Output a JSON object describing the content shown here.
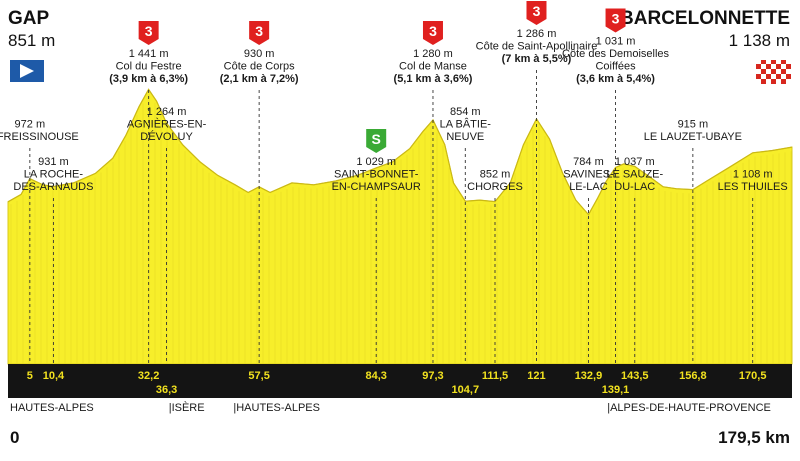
{
  "start": {
    "name": "GAP",
    "altitude": "851 m",
    "km": "0"
  },
  "finish": {
    "name": "BARCELONNETTE",
    "altitude": "1 138 m",
    "km": "179,5 km"
  },
  "regions": [
    {
      "label": "HAUTES-ALPES",
      "km": 0
    },
    {
      "label": "|ISÈRE",
      "km": 36.8
    },
    {
      "label": "|HAUTES-ALPES",
      "km": 51.6
    },
    {
      "label": "|ALPES-DE-HAUTE-PROVENCE",
      "km": 137.2
    }
  ],
  "colors": {
    "profile": "#f7ee2a",
    "band": "#141414",
    "km_text": "#f2e21f",
    "climb_badge": "#e0201f",
    "sprint_badge": "#3aaa35",
    "start_flag": "#1e5aa8"
  },
  "chart_data": {
    "type": "area",
    "xlabel": "",
    "ylabel": "",
    "xlim": [
      0,
      179.5
    ],
    "ylim": [
      0,
      1700
    ],
    "profile": [
      {
        "km": 0,
        "alt": 851
      },
      {
        "km": 3,
        "alt": 890
      },
      {
        "km": 5,
        "alt": 972
      },
      {
        "km": 8,
        "alt": 940
      },
      {
        "km": 10.4,
        "alt": 931
      },
      {
        "km": 15,
        "alt": 950
      },
      {
        "km": 20,
        "alt": 1000
      },
      {
        "km": 24,
        "alt": 1080
      },
      {
        "km": 27,
        "alt": 1200
      },
      {
        "km": 30,
        "alt": 1350
      },
      {
        "km": 32.2,
        "alt": 1441
      },
      {
        "km": 34,
        "alt": 1380
      },
      {
        "km": 36.3,
        "alt": 1264
      },
      {
        "km": 40,
        "alt": 1150
      },
      {
        "km": 44,
        "alt": 1060
      },
      {
        "km": 48,
        "alt": 990
      },
      {
        "km": 52,
        "alt": 940
      },
      {
        "km": 55,
        "alt": 900
      },
      {
        "km": 57.5,
        "alt": 930
      },
      {
        "km": 60,
        "alt": 900
      },
      {
        "km": 65,
        "alt": 950
      },
      {
        "km": 70,
        "alt": 940
      },
      {
        "km": 75,
        "alt": 960
      },
      {
        "km": 80,
        "alt": 990
      },
      {
        "km": 84.3,
        "alt": 1029
      },
      {
        "km": 88,
        "alt": 1060
      },
      {
        "km": 92,
        "alt": 1130
      },
      {
        "km": 95,
        "alt": 1220
      },
      {
        "km": 97.3,
        "alt": 1280
      },
      {
        "km": 100,
        "alt": 1150
      },
      {
        "km": 102,
        "alt": 950
      },
      {
        "km": 104.7,
        "alt": 854
      },
      {
        "km": 108,
        "alt": 860
      },
      {
        "km": 111.5,
        "alt": 852
      },
      {
        "km": 115,
        "alt": 950
      },
      {
        "km": 118,
        "alt": 1150
      },
      {
        "km": 121,
        "alt": 1286
      },
      {
        "km": 124,
        "alt": 1180
      },
      {
        "km": 127,
        "alt": 1000
      },
      {
        "km": 130,
        "alt": 860
      },
      {
        "km": 132.9,
        "alt": 784
      },
      {
        "km": 135,
        "alt": 870
      },
      {
        "km": 137,
        "alt": 960
      },
      {
        "km": 139.1,
        "alt": 1031
      },
      {
        "km": 141,
        "alt": 1050
      },
      {
        "km": 143.5,
        "alt": 1037
      },
      {
        "km": 147,
        "alt": 980
      },
      {
        "km": 150,
        "alt": 930
      },
      {
        "km": 153,
        "alt": 920
      },
      {
        "km": 156.8,
        "alt": 915
      },
      {
        "km": 160,
        "alt": 960
      },
      {
        "km": 165,
        "alt": 1030
      },
      {
        "km": 170.5,
        "alt": 1108
      },
      {
        "km": 175,
        "alt": 1120
      },
      {
        "km": 179.5,
        "alt": 1138
      }
    ],
    "km_markers": [
      {
        "km": 5,
        "label": "5",
        "row": 0
      },
      {
        "km": 10.4,
        "label": "10,4",
        "row": 0
      },
      {
        "km": 32.2,
        "label": "32,2",
        "row": 0
      },
      {
        "km": 36.3,
        "label": "36,3",
        "row": 1
      },
      {
        "km": 57.5,
        "label": "57,5",
        "row": 0
      },
      {
        "km": 84.3,
        "label": "84,3",
        "row": 0
      },
      {
        "km": 97.3,
        "label": "97,3",
        "row": 0
      },
      {
        "km": 104.7,
        "label": "104,7",
        "row": 1
      },
      {
        "km": 111.5,
        "label": "111,5",
        "row": 0
      },
      {
        "km": 121,
        "label": "121",
        "row": 0
      },
      {
        "km": 132.9,
        "label": "132,9",
        "row": 0
      },
      {
        "km": 139.1,
        "label": "139,1",
        "row": 1
      },
      {
        "km": 143.5,
        "label": "143,5",
        "row": 0
      },
      {
        "km": 156.8,
        "label": "156,8",
        "row": 0
      },
      {
        "km": 170.5,
        "label": "170,5",
        "row": 0
      }
    ],
    "points": [
      {
        "km": 5,
        "alt": 972,
        "lines": [
          "972 m",
          "LA FREISSINOUSE"
        ],
        "level": 1
      },
      {
        "km": 10.4,
        "alt": 931,
        "lines": [
          "931 m",
          "LA ROCHE-",
          "DES-ARNAUDS"
        ],
        "level": 2
      },
      {
        "km": 32.2,
        "alt": 1441,
        "lines": [
          "1 441 m",
          "Col du Festre",
          "(3,9 km à 6,3%)"
        ],
        "bold": [
          2
        ],
        "climb": "3",
        "level": 0
      },
      {
        "km": 36.3,
        "alt": 1264,
        "lines": [
          "1 264 m",
          "AGNIÈRES-EN-",
          "DÉVOLUY"
        ],
        "level": 1
      },
      {
        "km": 57.5,
        "alt": 930,
        "lines": [
          "930 m",
          "Côte de Corps",
          "(2,1 km à 7,2%)"
        ],
        "bold": [
          2
        ],
        "climb": "3",
        "level": 0
      },
      {
        "km": 84.3,
        "alt": 1029,
        "lines": [
          "1 029 m",
          "SAINT-BONNET-",
          "EN-CHAMPSAUR"
        ],
        "sprint": "S",
        "level": 2
      },
      {
        "km": 97.3,
        "alt": 1280,
        "lines": [
          "1 280 m",
          "Col de Manse",
          "(5,1 km à 3,6%)"
        ],
        "bold": [
          2
        ],
        "climb": "3",
        "level": 0
      },
      {
        "km": 104.7,
        "alt": 854,
        "lines": [
          "854 m",
          "LA BÂTIE-",
          "NEUVE"
        ],
        "level": 1
      },
      {
        "km": 111.5,
        "alt": 852,
        "lines": [
          "852 m",
          "CHORGES"
        ],
        "level": 2
      },
      {
        "km": 121,
        "alt": 1286,
        "lines": [
          "1 286 m",
          "Côte de Saint-Apollinaire",
          "(7 km à 5,5%)"
        ],
        "bold": [
          2
        ],
        "climb": "3",
        "level": -1
      },
      {
        "km": 132.9,
        "alt": 784,
        "lines": [
          "784 m",
          "SAVINES-",
          "LE-LAC"
        ],
        "level": 2
      },
      {
        "km": 139.1,
        "alt": 1031,
        "lines": [
          "1 031 m",
          "Côte des Demoiselles",
          "Coiffées",
          "(3,6 km à 5,4%)"
        ],
        "bold": [
          3
        ],
        "climb": "3",
        "level": 0
      },
      {
        "km": 143.5,
        "alt": 1037,
        "lines": [
          "1 037 m",
          "LE SAUZE-",
          "DU-LAC"
        ],
        "level": 2
      },
      {
        "km": 156.8,
        "alt": 915,
        "lines": [
          "915 m",
          "LE LAUZET-UBAYE"
        ],
        "level": 1
      },
      {
        "km": 170.5,
        "alt": 1108,
        "lines": [
          "1 108 m",
          "LES THUILES"
        ],
        "level": 2
      }
    ]
  }
}
